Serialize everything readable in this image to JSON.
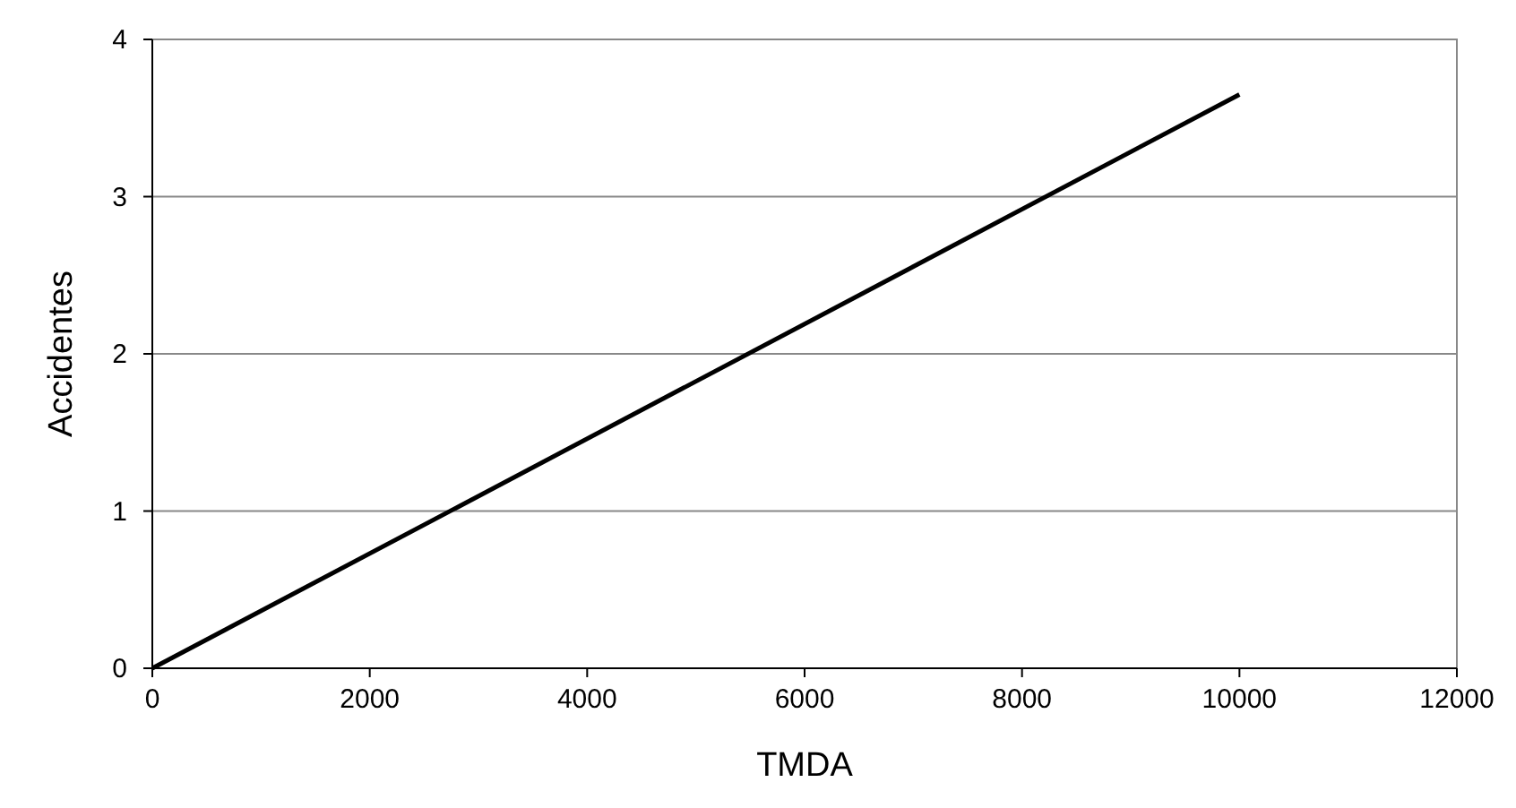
{
  "chart_data": {
    "type": "line",
    "xlabel": "TMDA",
    "ylabel": "Accidentes",
    "x": [
      0,
      10000
    ],
    "series": [
      {
        "color": "#000000",
        "values": [
          0,
          3.65
        ]
      }
    ],
    "xlim": [
      0,
      12000
    ],
    "xticks": [
      0,
      2000,
      4000,
      6000,
      8000,
      10000,
      12000
    ],
    "ylim": [
      0,
      4
    ],
    "yticks": [
      0,
      1,
      2,
      3,
      4
    ],
    "grid": "y",
    "marker": "none",
    "line_style": "solid"
  }
}
